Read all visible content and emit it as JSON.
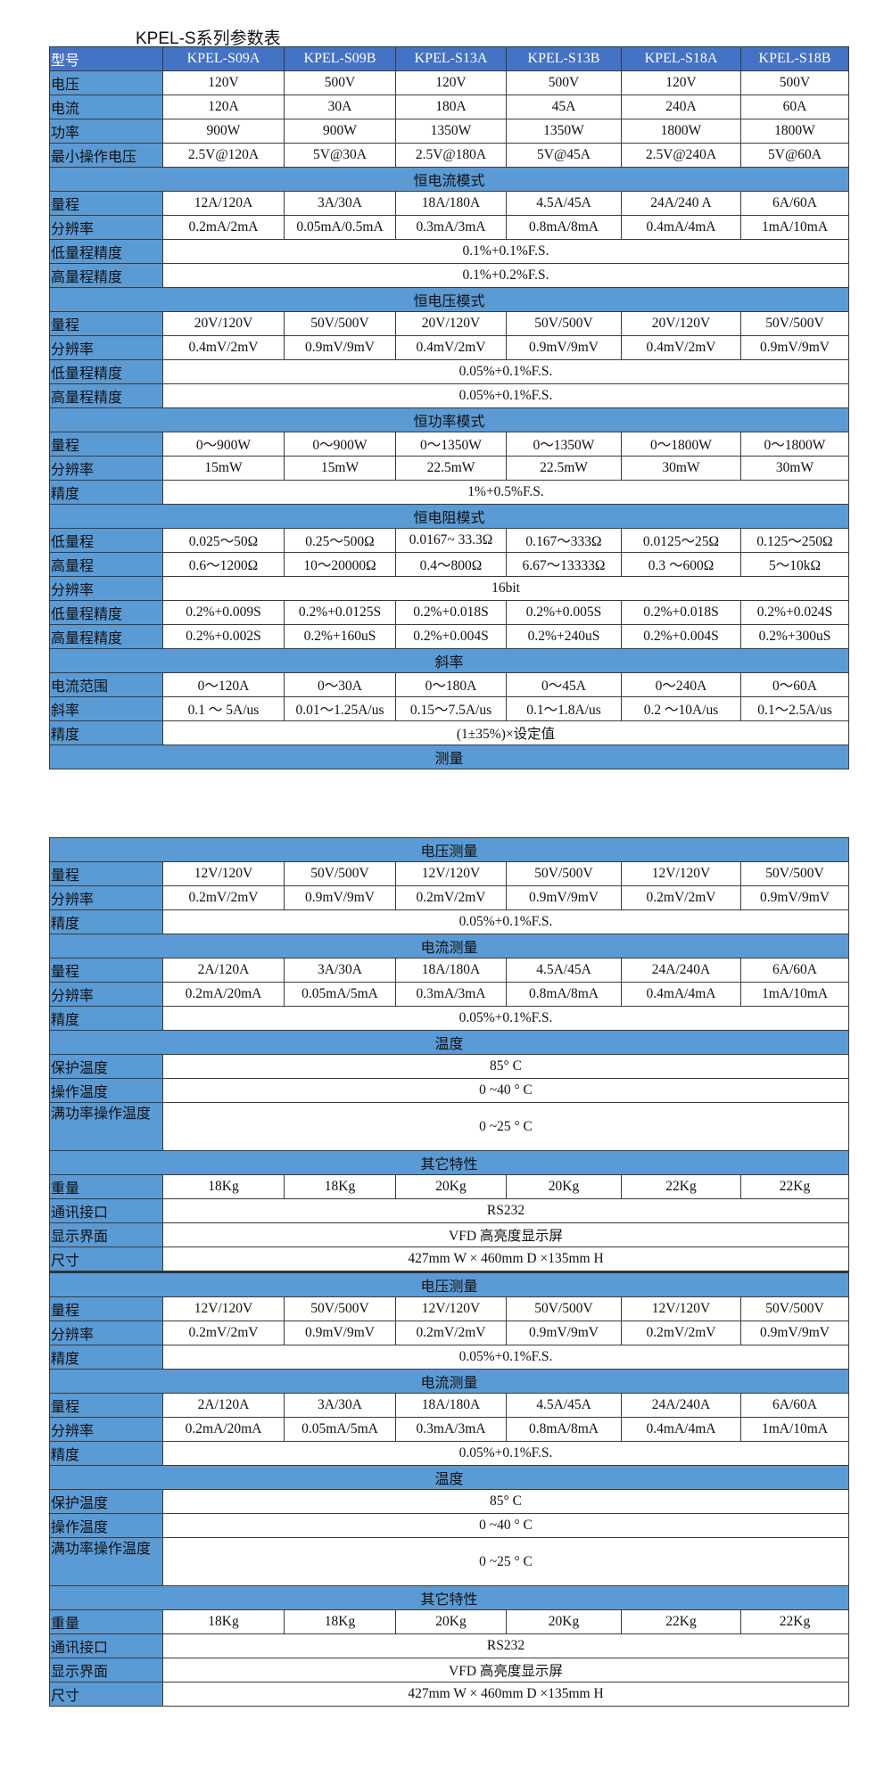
{
  "title": "KPEL-S系列参数表",
  "colors": {
    "header": "#4472c4",
    "section": "#5b9bd5",
    "label": "#5b9bd5"
  },
  "table1": [
    {
      "type": "head",
      "label": "型号",
      "values": [
        "KPEL-S09A",
        "KPEL-S09B",
        "KPEL-S13A",
        "KPEL-S13B",
        "KPEL-S18A",
        "KPEL-S18B"
      ]
    },
    {
      "type": "data",
      "label": "电压",
      "values": [
        "120V",
        "500V",
        "120V",
        "500V",
        "120V",
        "500V"
      ]
    },
    {
      "type": "data",
      "label": "电流",
      "values": [
        "120A",
        "30A",
        "180A",
        "45A",
        "240A",
        "60A"
      ]
    },
    {
      "type": "data",
      "label": "功率",
      "values": [
        "900W",
        "900W",
        "1350W",
        "1350W",
        "1800W",
        "1800W"
      ]
    },
    {
      "type": "data",
      "label": "最小操作电压",
      "values": [
        "2.5V@120A",
        "5V@30A",
        "2.5V@180A",
        "5V@45A",
        "2.5V@240A",
        "5V@60A"
      ]
    },
    {
      "type": "sec",
      "label": "恒电流模式"
    },
    {
      "type": "data",
      "label": "量程",
      "values": [
        "12A/120A",
        "3A/30A",
        "18A/180A",
        "4.5A/45A",
        "24A/240 A",
        "6A/60A"
      ]
    },
    {
      "type": "data",
      "label": "分辨率",
      "values": [
        "0.2mA/2mA",
        "0.05mA/0.5mA",
        "0.3mA/3mA",
        "0.8mA/8mA",
        "0.4mA/4mA",
        "1mA/10mA"
      ]
    },
    {
      "type": "span",
      "label": "低量程精度",
      "value": "0.1%+0.1%F.S."
    },
    {
      "type": "span",
      "label": "高量程精度",
      "value": "0.1%+0.2%F.S."
    },
    {
      "type": "sec",
      "label": "恒电压模式"
    },
    {
      "type": "data",
      "label": "量程",
      "values": [
        "20V/120V",
        "50V/500V",
        "20V/120V",
        "50V/500V",
        "20V/120V",
        "50V/500V"
      ]
    },
    {
      "type": "data",
      "label": "分辨率",
      "values": [
        "0.4mV/2mV",
        "0.9mV/9mV",
        "0.4mV/2mV",
        "0.9mV/9mV",
        "0.4mV/2mV",
        "0.9mV/9mV"
      ]
    },
    {
      "type": "span",
      "label": "低量程精度",
      "value": "0.05%+0.1%F.S."
    },
    {
      "type": "span",
      "label": "高量程精度",
      "value": "0.05%+0.1%F.S."
    },
    {
      "type": "sec",
      "label": "恒功率模式"
    },
    {
      "type": "data",
      "label": "量程",
      "values": [
        "0～900W",
        "0～900W",
        "0～1350W",
        "0～1350W",
        "0～1800W",
        "0～1800W"
      ]
    },
    {
      "type": "data",
      "label": "分辨率",
      "values": [
        "15mW",
        "15mW",
        "22.5mW",
        "22.5mW",
        "30mW",
        "30mW"
      ]
    },
    {
      "type": "span",
      "label": "精度",
      "value": "1%+0.5%F.S."
    },
    {
      "type": "sec",
      "label": "恒电阻模式"
    },
    {
      "type": "data",
      "label": "低量程",
      "values": [
        "0.025～50Ω",
        "0.25～500Ω",
        "0.0167~ 33.3Ω",
        "0.167～333Ω",
        "0.0125～25Ω",
        "0.125～250Ω"
      ]
    },
    {
      "type": "data",
      "label": "高量程",
      "values": [
        "0.6～1200Ω",
        "10～20000Ω",
        "0.4～800Ω",
        "6.67～13333Ω",
        "0.3 ～600Ω",
        "5～10kΩ"
      ]
    },
    {
      "type": "span",
      "label": "分辨率",
      "value": "16bit"
    },
    {
      "type": "data",
      "label": "低量程精度",
      "values": [
        "0.2%+0.009S",
        "0.2%+0.0125S",
        "0.2%+0.018S",
        "0.2%+0.005S",
        "0.2%+0.018S",
        "0.2%+0.024S"
      ]
    },
    {
      "type": "data",
      "label": "高量程精度",
      "values": [
        "0.2%+0.002S",
        "0.2%+160uS",
        "0.2%+0.004S",
        "0.2%+240uS",
        "0.2%+0.004S",
        "0.2%+300uS"
      ]
    },
    {
      "type": "sec",
      "label": "斜率"
    },
    {
      "type": "data",
      "label": "电流范围",
      "values": [
        "0～120A",
        "0～30A",
        "0～180A",
        "0～45A",
        "0～240A",
        "0～60A"
      ]
    },
    {
      "type": "data",
      "label": "斜率",
      "values": [
        "0.1 ～ 5A/us",
        "0.01～1.25A/us",
        "0.15～7.5A/us",
        "0.1～1.8A/us",
        "0.2 ～10A/us",
        "0.1～2.5A/us"
      ]
    },
    {
      "type": "span",
      "label": "精度",
      "value": "(1±35%)×设定值"
    },
    {
      "type": "sec",
      "label": "测量"
    }
  ],
  "table2": [
    {
      "type": "sec",
      "label": "电压测量"
    },
    {
      "type": "data",
      "label": "量程",
      "values": [
        "12V/120V",
        "50V/500V",
        "12V/120V",
        "50V/500V",
        "12V/120V",
        "50V/500V"
      ]
    },
    {
      "type": "data",
      "label": "分辨率",
      "values": [
        "0.2mV/2mV",
        "0.9mV/9mV",
        "0.2mV/2mV",
        "0.9mV/9mV",
        "0.2mV/2mV",
        "0.9mV/9mV"
      ]
    },
    {
      "type": "span",
      "label": "精度",
      "value": "0.05%+0.1%F.S."
    },
    {
      "type": "sec",
      "label": "电流测量"
    },
    {
      "type": "data",
      "label": "量程",
      "values": [
        "2A/120A",
        "3A/30A",
        "18A/180A",
        "4.5A/45A",
        "24A/240A",
        "6A/60A"
      ]
    },
    {
      "type": "data",
      "label": "分辨率",
      "values": [
        "0.2mA/20mA",
        "0.05mA/5mA",
        "0.3mA/3mA",
        "0.8mA/8mA",
        "0.4mA/4mA",
        "1mA/10mA"
      ]
    },
    {
      "type": "span",
      "label": "精度",
      "value": "0.05%+0.1%F.S."
    },
    {
      "type": "sec",
      "label": "温度"
    },
    {
      "type": "span",
      "label": "保护温度",
      "value": "85° C"
    },
    {
      "type": "span",
      "label": "操作温度",
      "value": "0 ~40 ° C"
    },
    {
      "type": "tall",
      "label": "满功率操作温度",
      "value": "0 ~25 ° C"
    },
    {
      "type": "sec",
      "label": "其它特性"
    },
    {
      "type": "data",
      "label": "重量",
      "values": [
        "18Kg",
        "18Kg",
        "20Kg",
        "20Kg",
        "22Kg",
        "22Kg"
      ]
    },
    {
      "type": "span",
      "label": "通讯接口",
      "value": "RS232"
    },
    {
      "type": "span",
      "label": "显示界面",
      "value": "VFD  高亮度显示屏"
    },
    {
      "type": "span",
      "label": "尺寸",
      "value": "427mm W  × 460mm D  ×135mm H"
    },
    {
      "type": "sec",
      "label": "电压测量",
      "split": true
    },
    {
      "type": "data",
      "label": "量程",
      "values": [
        "12V/120V",
        "50V/500V",
        "12V/120V",
        "50V/500V",
        "12V/120V",
        "50V/500V"
      ]
    },
    {
      "type": "data",
      "label": "分辨率",
      "values": [
        "0.2mV/2mV",
        "0.9mV/9mV",
        "0.2mV/2mV",
        "0.9mV/9mV",
        "0.2mV/2mV",
        "0.9mV/9mV"
      ]
    },
    {
      "type": "span",
      "label": "精度",
      "value": "0.05%+0.1%F.S."
    },
    {
      "type": "sec",
      "label": "电流测量"
    },
    {
      "type": "data",
      "label": "量程",
      "values": [
        "2A/120A",
        "3A/30A",
        "18A/180A",
        "4.5A/45A",
        "24A/240A",
        "6A/60A"
      ]
    },
    {
      "type": "data",
      "label": "分辨率",
      "values": [
        "0.2mA/20mA",
        "0.05mA/5mA",
        "0.3mA/3mA",
        "0.8mA/8mA",
        "0.4mA/4mA",
        "1mA/10mA"
      ]
    },
    {
      "type": "span",
      "label": "精度",
      "value": "0.05%+0.1%F.S."
    },
    {
      "type": "sec",
      "label": "温度"
    },
    {
      "type": "span",
      "label": "保护温度",
      "value": "85° C"
    },
    {
      "type": "span",
      "label": "操作温度",
      "value": "0 ~40 ° C"
    },
    {
      "type": "tall",
      "label": "满功率操作温度",
      "value": "0 ~25 ° C"
    },
    {
      "type": "sec",
      "label": "其它特性"
    },
    {
      "type": "data",
      "label": "重量",
      "values": [
        "18Kg",
        "18Kg",
        "20Kg",
        "20Kg",
        "22Kg",
        "22Kg"
      ]
    },
    {
      "type": "span",
      "label": "通讯接口",
      "value": "RS232"
    },
    {
      "type": "span",
      "label": "显示界面",
      "value": "VFD  高亮度显示屏"
    },
    {
      "type": "span",
      "label": "尺寸",
      "value": "427mm W  × 460mm D  ×135mm H"
    }
  ]
}
